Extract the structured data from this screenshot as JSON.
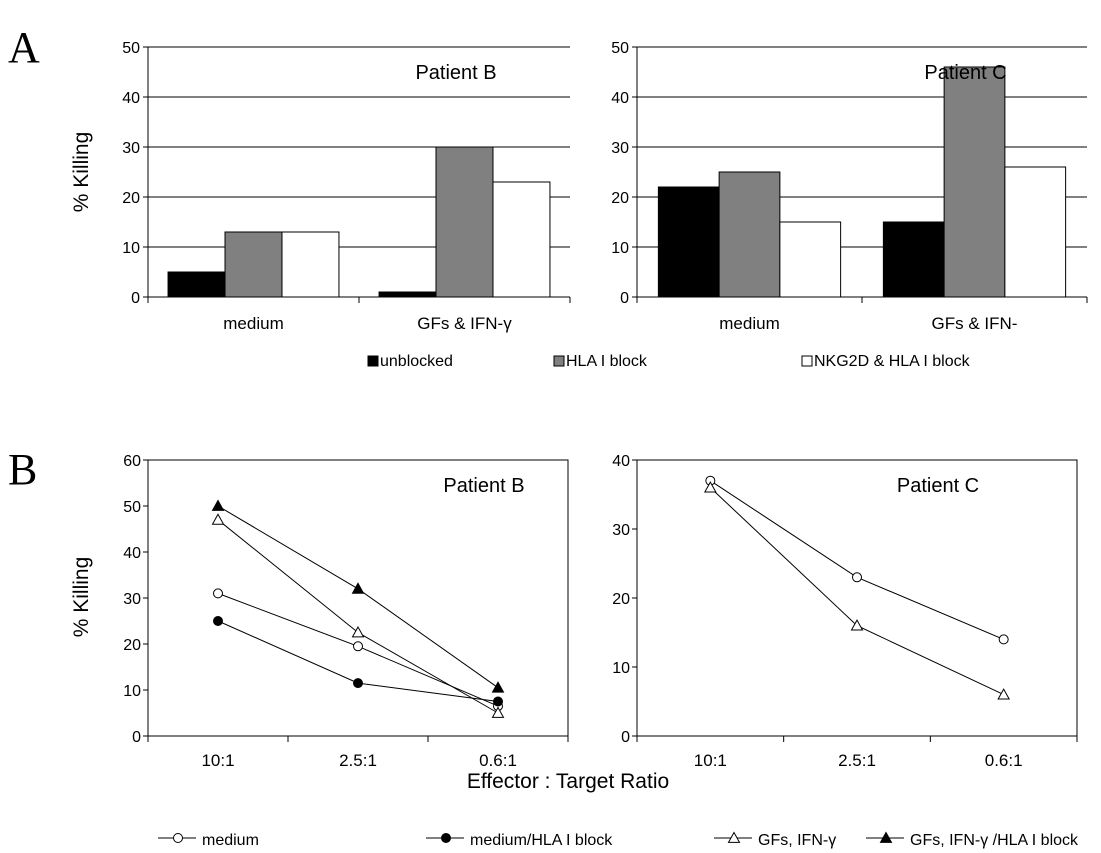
{
  "panel_labels": [
    "A",
    "B"
  ],
  "chart_data": [
    {
      "id": "A_B",
      "type": "bar",
      "title": "Patient B",
      "ylabel": "% Killing",
      "xlabel": "",
      "ylim": [
        0,
        50
      ],
      "yticks": [
        "0",
        "10",
        "20",
        "30",
        "40",
        "50"
      ],
      "grid": true,
      "categories": [
        "medium",
        "GFs & IFN-γ"
      ],
      "series": [
        {
          "name": "unblocked",
          "color": "#000000",
          "values": [
            5,
            1
          ]
        },
        {
          "name": "HLA I block",
          "color": "#808080",
          "values": [
            13,
            30
          ]
        },
        {
          "name": "NKG2D & HLA I block",
          "color": "#ffffff",
          "values": [
            13,
            23
          ]
        }
      ]
    },
    {
      "id": "A_C",
      "type": "bar",
      "title": "Patient C",
      "ylabel": "",
      "xlabel": "",
      "ylim": [
        0,
        50
      ],
      "yticks": [
        "0",
        "10",
        "20",
        "30",
        "40",
        "50"
      ],
      "grid": true,
      "categories": [
        "medium",
        "GFs  &  IFN-"
      ],
      "series": [
        {
          "name": "unblocked",
          "color": "#000000",
          "values": [
            22,
            15
          ]
        },
        {
          "name": "HLA I block",
          "color": "#808080",
          "values": [
            25,
            46
          ]
        },
        {
          "name": "NKG2D & HLA I block",
          "color": "#ffffff",
          "values": [
            15,
            26
          ]
        }
      ]
    },
    {
      "id": "B_B",
      "type": "line",
      "title": "Patient B",
      "ylabel": "% Killing",
      "xlabel": "Effector : Target Ratio",
      "ylim": [
        0,
        60
      ],
      "yticks": [
        "0",
        "10",
        "20",
        "30",
        "40",
        "50",
        "60"
      ],
      "grid": false,
      "categories": [
        "10:1",
        "2.5:1",
        "0.6:1"
      ],
      "series": [
        {
          "name": "medium",
          "marker": "circle-open",
          "values": [
            31,
            19.5,
            6.5
          ]
        },
        {
          "name": "medium/HLA I block",
          "marker": "circle-filled",
          "values": [
            25,
            11.5,
            7.5
          ]
        },
        {
          "name": "GFs, IFN-γ",
          "marker": "triangle-open",
          "values": [
            47,
            22.5,
            5
          ]
        },
        {
          "name": "GFs, IFN-γ /HLA I block",
          "marker": "triangle-filled",
          "values": [
            50,
            32,
            10.5
          ]
        }
      ]
    },
    {
      "id": "B_C",
      "type": "line",
      "title": "Patient C",
      "ylabel": "",
      "xlabel": "",
      "ylim": [
        0,
        40
      ],
      "yticks": [
        "0",
        "10",
        "20",
        "30",
        "40"
      ],
      "grid": false,
      "categories": [
        "10:1",
        "2.5:1",
        "0.6:1"
      ],
      "series": [
        {
          "name": "medium",
          "marker": "circle-open",
          "values": [
            37,
            23,
            14
          ]
        },
        {
          "name": "GFs, IFN-γ",
          "marker": "triangle-open",
          "values": [
            36,
            16,
            6
          ]
        }
      ]
    }
  ],
  "legend_bars": [
    "unblocked",
    "HLA I block",
    "NKG2D & HLA I block"
  ],
  "legend_lines": [
    "medium",
    "medium/HLA I block",
    "GFs, IFN-γ",
    "GFs, IFN-γ /HLA I block"
  ],
  "common_xlabel": "Effector : Target Ratio"
}
